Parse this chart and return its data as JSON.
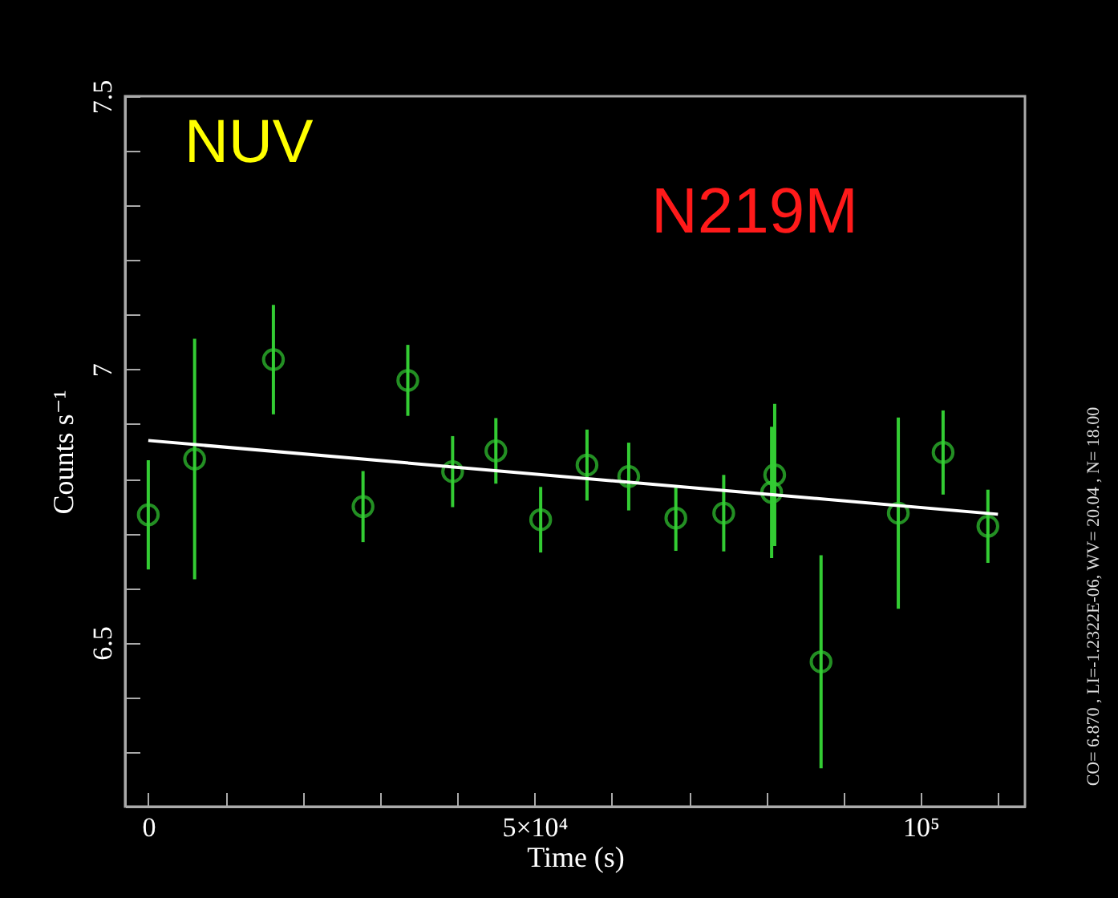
{
  "chart_data": {
    "type": "scatter",
    "xlabel": "Time (s)",
    "ylabel": "Counts s⁻¹",
    "xlim": [
      -3000,
      113500
    ],
    "ylim": [
      6.2,
      7.5
    ],
    "xticks": [
      0,
      {
        "value": 10000,
        "label": null
      },
      {
        "value": 20000,
        "label": null
      },
      {
        "value": 30000,
        "label": null
      },
      {
        "value": 40000,
        "label": null
      },
      {
        "value": 50000,
        "label": "5×10⁴"
      },
      {
        "value": 60000,
        "label": null
      },
      {
        "value": 70000,
        "label": null
      },
      {
        "value": 80000,
        "label": null
      },
      {
        "value": 90000,
        "label": null
      },
      {
        "value": 100000,
        "label": "10⁵"
      },
      {
        "value": 110000,
        "label": null
      }
    ],
    "yticks": [
      {
        "value": 6.3,
        "label": null
      },
      {
        "value": 6.4,
        "label": null
      },
      6.5,
      {
        "value": 6.6,
        "label": null
      },
      {
        "value": 6.7,
        "label": null
      },
      {
        "value": 6.8,
        "label": null
      },
      {
        "value": 6.9,
        "label": null
      },
      7,
      {
        "value": 7.1,
        "label": null
      },
      {
        "value": 7.2,
        "label": null
      },
      {
        "value": 7.3,
        "label": null
      },
      {
        "value": 7.4,
        "label": null
      },
      7.5
    ],
    "marker": "circle",
    "grid": false,
    "series": [
      {
        "color": "#33cc33",
        "x": [
          0,
          6000,
          16200,
          27800,
          33600,
          39400,
          45000,
          50800,
          56800,
          62200,
          68300,
          74500,
          80700,
          81100,
          87100,
          97100,
          102900,
          108700
        ],
        "values": [
          6.734,
          6.836,
          7.018,
          6.749,
          6.98,
          6.813,
          6.851,
          6.725,
          6.825,
          6.804,
          6.728,
          6.737,
          6.775,
          6.807,
          6.465,
          6.737,
          6.848,
          6.713
        ],
        "errors": [
          0.1,
          0.22,
          0.1,
          0.065,
          0.065,
          0.065,
          0.06,
          0.06,
          0.065,
          0.062,
          0.06,
          0.07,
          0.12,
          0.13,
          0.195,
          0.175,
          0.077,
          0.067
        ]
      },
      {
        "type": "line",
        "color": "#ffffff",
        "line_style": "solid",
        "marker": "none",
        "x": [
          0,
          110000
        ],
        "values": [
          6.87,
          6.735
        ]
      }
    ],
    "annotations": [
      "NUV",
      "N219M",
      "CO= 6.870 , LI=-1.2322E-06, WV= 20.04 , N= 18.00"
    ]
  }
}
